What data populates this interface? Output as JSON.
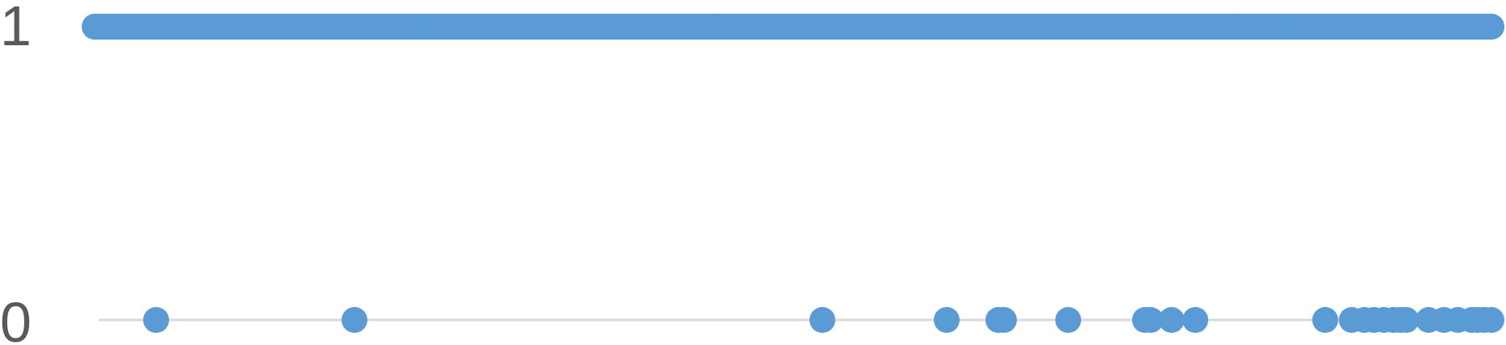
{
  "chart_data": {
    "type": "scatter",
    "title": "",
    "xlabel": "",
    "ylabel": "",
    "y_ticks": [
      "0",
      "1"
    ],
    "ylim": [
      0,
      1
    ],
    "xlim": [
      0,
      1
    ],
    "grid": false,
    "series_color": "#5B9BD5",
    "baseline_color": "#D9D9D9",
    "series": [
      {
        "values_y1_x": [
          0.0,
          0.024,
          0.046,
          0.075,
          0.099,
          0.124,
          0.151,
          0.177,
          0.206,
          0.23,
          0.257,
          0.283,
          0.31,
          0.336,
          0.362,
          0.389,
          0.415,
          0.441,
          0.468,
          0.494,
          0.52,
          0.547,
          0.573,
          0.6,
          0.626,
          0.652,
          0.679,
          0.705,
          0.731,
          0.758,
          0.784,
          0.81,
          0.837,
          0.863,
          0.889,
          0.916,
          0.942,
          0.968,
          0.984,
          1.0
        ],
        "values_y0_x": [
          0.044,
          0.186,
          0.521,
          0.61,
          0.647,
          0.651,
          0.697,
          0.752,
          0.756,
          0.771,
          0.788,
          0.881,
          0.9,
          0.909,
          0.916,
          0.923,
          0.93,
          0.935,
          0.939,
          0.955,
          0.966,
          0.976,
          0.986,
          0.99,
          0.995,
          1.0
        ]
      }
    ]
  }
}
